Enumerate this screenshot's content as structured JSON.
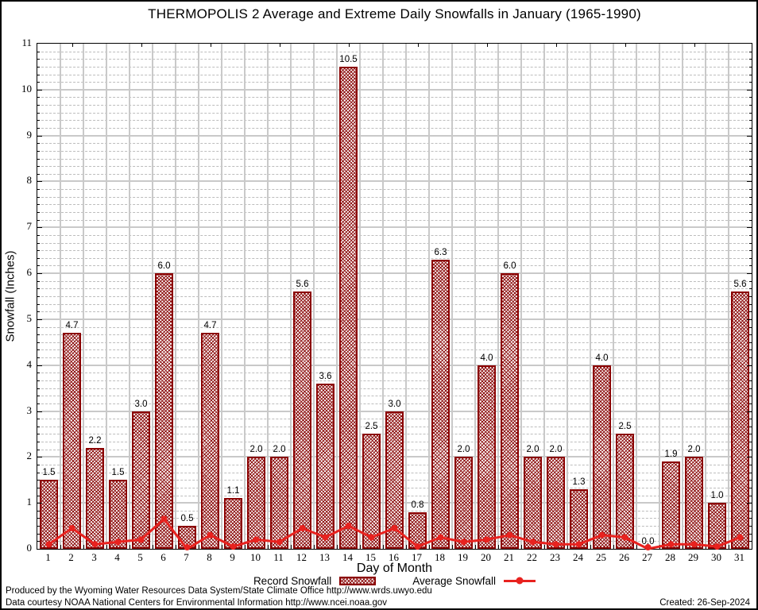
{
  "chart_data": {
    "type": "bar",
    "title": "THERMOPOLIS 2 Average and Extreme Daily Snowfalls in January (1965-1990)",
    "xlabel": "Day of Month",
    "ylabel": "Snowfall (Inches)",
    "ylim": [
      0,
      11
    ],
    "y_major_step": 1,
    "grid": {
      "horizontal_major": "solid",
      "horizontal_minor": "dashed",
      "vertical": "solid at day boundaries"
    },
    "legend_position": "bottom",
    "categories": [
      1,
      2,
      3,
      4,
      5,
      6,
      7,
      8,
      9,
      10,
      11,
      12,
      13,
      14,
      15,
      16,
      17,
      18,
      19,
      20,
      21,
      22,
      23,
      24,
      25,
      26,
      27,
      28,
      29,
      30,
      31
    ],
    "series": [
      {
        "name": "Record Snowfall",
        "type": "bar",
        "color": "#8b0000",
        "values": [
          1.5,
          4.7,
          2.2,
          1.5,
          3.0,
          6.0,
          0.5,
          4.7,
          1.1,
          2.0,
          2.0,
          5.6,
          3.6,
          10.5,
          2.5,
          3.0,
          0.8,
          6.3,
          2.0,
          4.0,
          6.0,
          2.0,
          2.0,
          1.3,
          4.0,
          2.5,
          0.0,
          1.9,
          2.0,
          1.0,
          5.6
        ]
      },
      {
        "name": "Average Snowfall",
        "type": "line",
        "color": "#e8221f",
        "values": [
          0.1,
          0.45,
          0.1,
          0.15,
          0.2,
          0.65,
          0.0,
          0.3,
          0.05,
          0.2,
          0.15,
          0.45,
          0.25,
          0.5,
          0.25,
          0.45,
          0.05,
          0.25,
          0.15,
          0.2,
          0.3,
          0.15,
          0.1,
          0.1,
          0.3,
          0.25,
          0.0,
          0.1,
          0.1,
          0.05,
          0.25
        ]
      }
    ]
  },
  "footer": {
    "line1": "Produced by the Wyoming Water Resources Data System/State Climate Office http://www.wrds.uwyo.edu",
    "line2": "Data courtesy NOAA National Centers for Environmental Information http://www.ncei.noaa.gov",
    "created": "Created: 26-Sep-2024"
  }
}
